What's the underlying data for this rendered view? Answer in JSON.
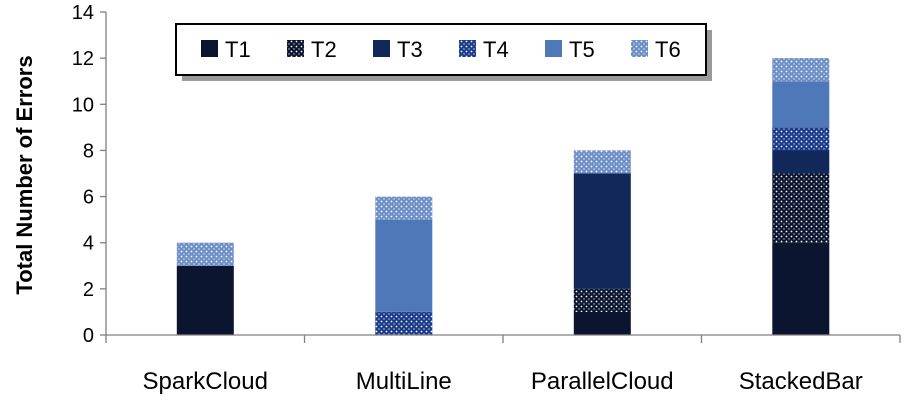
{
  "chart_data": {
    "type": "bar",
    "stacked": true,
    "categories": [
      "SparkCloud",
      "MultiLine",
      "ParallelCloud",
      "StackedBar"
    ],
    "series": [
      {
        "name": "T1",
        "values": [
          3,
          0,
          1,
          4
        ],
        "color": "#0b1530",
        "pattern": "solid"
      },
      {
        "name": "T2",
        "values": [
          0,
          0,
          1,
          3
        ],
        "color": "#0b1530",
        "pattern": "dots"
      },
      {
        "name": "T3",
        "values": [
          0,
          0,
          5,
          1
        ],
        "color": "#12275a",
        "pattern": "solid"
      },
      {
        "name": "T4",
        "values": [
          0,
          1,
          0,
          1
        ],
        "color": "#1a3b8a",
        "pattern": "dots"
      },
      {
        "name": "T5",
        "values": [
          0,
          4,
          0,
          2
        ],
        "color": "#4f78b8",
        "pattern": "solid"
      },
      {
        "name": "T6",
        "values": [
          1,
          1,
          1,
          1
        ],
        "color": "#6d8fc6",
        "pattern": "dots"
      }
    ],
    "ylabel": "Total Number of Errors",
    "xlabel": "",
    "ylim": [
      0,
      14
    ],
    "yticks": [
      "0",
      "2",
      "4",
      "6",
      "8",
      "10",
      "12",
      "14"
    ],
    "grid": false,
    "legend": "top-left, horizontal, boxed"
  }
}
